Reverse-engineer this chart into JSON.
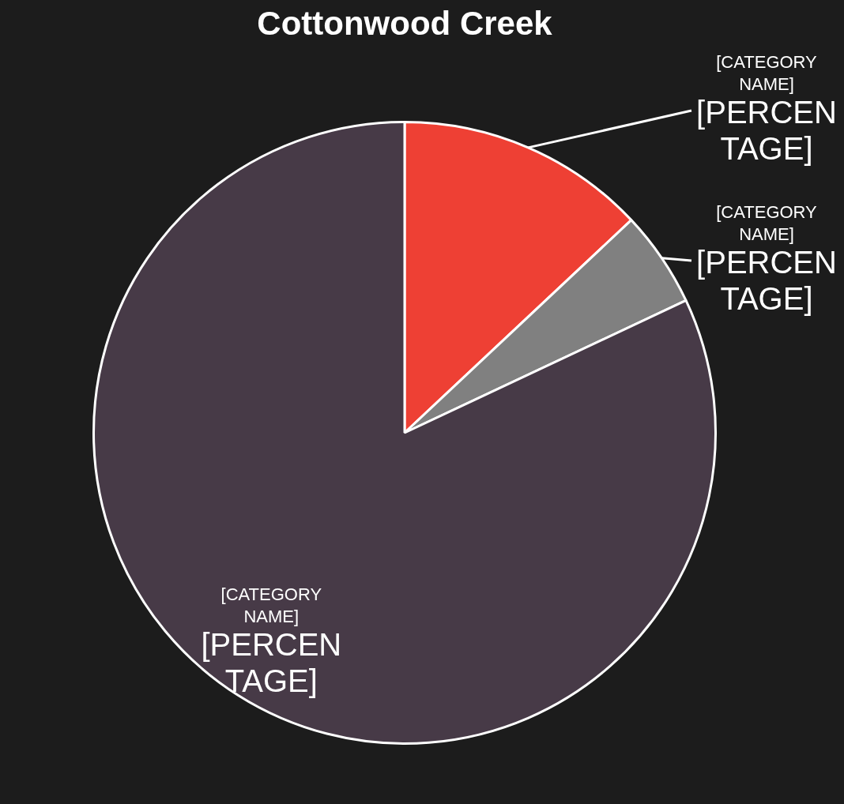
{
  "chart_data": {
    "type": "pie",
    "title": "Cottonwood Creek",
    "categories": [
      "[CATEGORY NAME]",
      "[CATEGORY NAME]",
      "[CATEGORY NAME]"
    ],
    "values": [
      13,
      5,
      82
    ],
    "colors": [
      "#ee4034",
      "#808080",
      "#473a47"
    ],
    "value_labels": [
      "[PERCENTAGE]",
      "[PERCENTAGE]",
      "[PERCENTAGE]"
    ],
    "legend": false
  }
}
